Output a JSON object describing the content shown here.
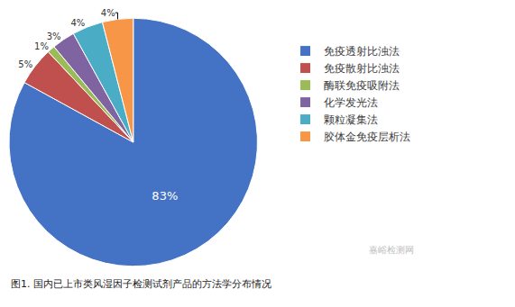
{
  "chart_data": {
    "type": "pie",
    "title": "图1. 国内已上市类风湿因子检测试剂产品的方法学分布情况",
    "categories": [
      "免疫透射比浊法",
      "免疫散射比浊法",
      "酶联免疫吸附法",
      "化学发光法",
      "颗粒凝集法",
      "胶体金免疫层析法"
    ],
    "values": [
      83,
      5,
      1,
      3,
      4,
      4
    ],
    "value_labels": [
      "83%",
      "5%",
      "1%",
      "3%",
      "4%",
      "4%"
    ],
    "colors": [
      "#4472C4",
      "#C0504D",
      "#9BBB59",
      "#8064A2",
      "#4BACC6",
      "#F79646"
    ],
    "data_labels": true,
    "legend": "right",
    "annotations": [
      "嘉峪检测网"
    ]
  }
}
